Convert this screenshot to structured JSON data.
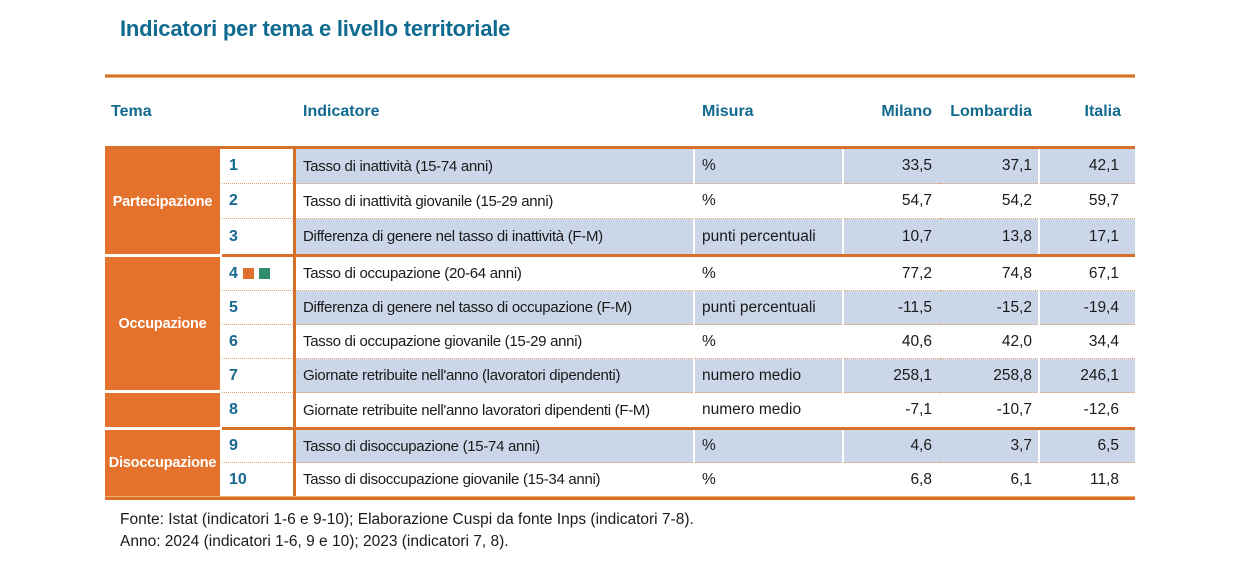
{
  "title": "Indicatori per tema e livello territoriale",
  "table": {
    "headers": {
      "tema": "Tema",
      "indicatore": "Indicatore",
      "misura": "Misura",
      "milano": "Milano",
      "lombardia": "Lombardia",
      "italia": "Italia"
    },
    "groups": [
      {
        "label": "Partecipazione",
        "rows": "1-3"
      },
      {
        "label": "Occupazione",
        "rows": "4-8"
      },
      {
        "label": "Disoccupazione",
        "rows": "9-10"
      }
    ],
    "rows": [
      {
        "num": "1",
        "indicator": "Tasso di inattività (15-74 anni)",
        "misura": "%",
        "milano": "33,5",
        "lombardia": "37,1",
        "italia": "42,1"
      },
      {
        "num": "2",
        "indicator": "Tasso di inattività giovanile (15-29 anni)",
        "misura": "%",
        "milano": "54,7",
        "lombardia": "54,2",
        "italia": "59,7"
      },
      {
        "num": "3",
        "indicator": "Differenza di genere nel tasso di inattività (F-M)",
        "misura": "punti percentuali",
        "milano": "10,7",
        "lombardia": "13,8",
        "italia": "17,1"
      },
      {
        "num": "4",
        "indicator": "Tasso di occupazione (20-64 anni)",
        "misura": "%",
        "milano": "77,2",
        "lombardia": "74,8",
        "italia": "67,1",
        "markers": [
          "orange-square",
          "green-square"
        ]
      },
      {
        "num": "5",
        "indicator": "Differenza di genere nel tasso di occupazione (F-M)",
        "misura": "punti percentuali",
        "milano": "-11,5",
        "lombardia": "-15,2",
        "italia": "-19,4"
      },
      {
        "num": "6",
        "indicator": "Tasso di occupazione giovanile (15-29 anni)",
        "misura": "%",
        "milano": "40,6",
        "lombardia": "42,0",
        "italia": "34,4"
      },
      {
        "num": "7",
        "indicator": "Giornate retribuite nell'anno (lavoratori dipendenti)",
        "misura": "numero medio",
        "milano": "258,1",
        "lombardia": "258,8",
        "italia": "246,1"
      },
      {
        "num": "8",
        "indicator": "Giornate retribuite nell'anno lavoratori dipendenti (F-M)",
        "misura": "numero medio",
        "milano": "-7,1",
        "lombardia": "-10,7",
        "italia": "-12,6"
      },
      {
        "num": "9",
        "indicator": "Tasso di disoccupazione (15-74 anni)",
        "misura": "%",
        "milano": "4,6",
        "lombardia": "3,7",
        "italia": "6,5"
      },
      {
        "num": "10",
        "indicator": "Tasso di disoccupazione giovanile (15-34 anni)",
        "misura": "%",
        "milano": "6,8",
        "lombardia": "6,1",
        "italia": "11,8"
      }
    ]
  },
  "footer": {
    "line1": "Fonte: Istat (indicatori 1-6 e 9-10); Elaborazione Cuspi da fonte Inps (indicatori 7-8).",
    "line2": "Anno: 2024 (indicatori 1-6, 9 e 10); 2023 (indicatori 7, 8)."
  },
  "colors": {
    "accent_orange": "#e5722c",
    "rule_orange": "#d8702a",
    "row_alt_blue": "#cbd6e8",
    "heading_teal": "#0f6a90",
    "number_teal": "#17688f",
    "marker_orange": "#e0702f",
    "marker_green": "#2e8d6e"
  }
}
